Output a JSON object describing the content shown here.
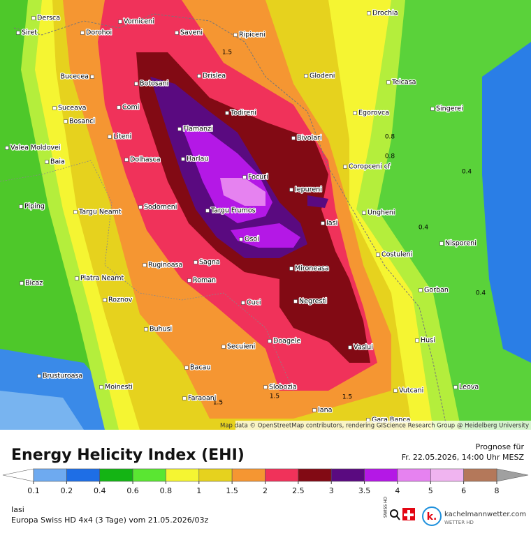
{
  "map": {
    "cities": [
      "Dersca",
      "Siret",
      "Dorohoi",
      "Vorniceni",
      "Saveni",
      "Ripiceni",
      "Drochia",
      "Bucecea",
      "Botosani",
      "Drislea",
      "Glodeni",
      "Teicasa",
      "Suceava",
      "Comi",
      "Todireni",
      "Egorovca",
      "Singerei",
      "Bosanci",
      "Flamanzi",
      "Liteni",
      "Bivolari",
      "Valea Moldovei",
      "Baia",
      "Dolhasca",
      "Harlau",
      "Coropceni cf",
      "Focuri",
      "Iepureni",
      "Piping",
      "Targu Neamt",
      "Sodomeni",
      "Targu Frumos",
      "Ungheni",
      "Iasi",
      "Osoi",
      "Nisporeni",
      "Costuleni",
      "Ruginoasa",
      "Sagna",
      "Mironeasa",
      "Roman",
      "Piatra Neamt",
      "Bicaz",
      "Gorban",
      "Negresti",
      "Roznov",
      "Cuci",
      "Buhusi",
      "Husi",
      "Doagele",
      "Secuieni",
      "Vaslui",
      "Bacau",
      "Brusturoasa",
      "Moinesti",
      "Slobozia",
      "Leova",
      "Vutcani",
      "Faraoani",
      "Iana",
      "Gara Banca"
    ],
    "contour_labels": [
      "1.5",
      "0.8",
      "0.8",
      "0.4",
      "0.4",
      "0.4",
      "1.5",
      "1.5",
      "1.5"
    ],
    "attribution": "Map data © OpenStreetMap contributors, rendering GIScience Research Group @ Heidelberg University"
  },
  "header": {
    "title": "Energy Helicity Index (EHI)",
    "forecast_label": "Prognose für",
    "forecast_time": "Fr. 22.05.2026, 14:00 Uhr MESZ"
  },
  "legend": {
    "ticks": [
      0.1,
      0.2,
      0.4,
      0.6,
      0.8,
      1,
      1.5,
      2,
      2.5,
      3,
      3.5,
      4,
      5,
      6,
      8
    ],
    "colors": [
      "#ffffff",
      "#6eaaf0",
      "#1e6ee6",
      "#14b414",
      "#5ae632",
      "#f5f532",
      "#e6d21e",
      "#f59632",
      "#f0325a",
      "#820a14",
      "#5a0a80",
      "#b418e6",
      "#e682f0",
      "#f0b4f0",
      "#b4785a",
      "#a0a0a0"
    ]
  },
  "footer": {
    "location": "Iasi",
    "model": "Europa Swiss HD 4x4 (3 Tage) vom 21.05.2026/03z",
    "swiss": "SWISS HD",
    "logo": "kachelmannwetter.com",
    "logo_sub": "WETTER HD"
  }
}
